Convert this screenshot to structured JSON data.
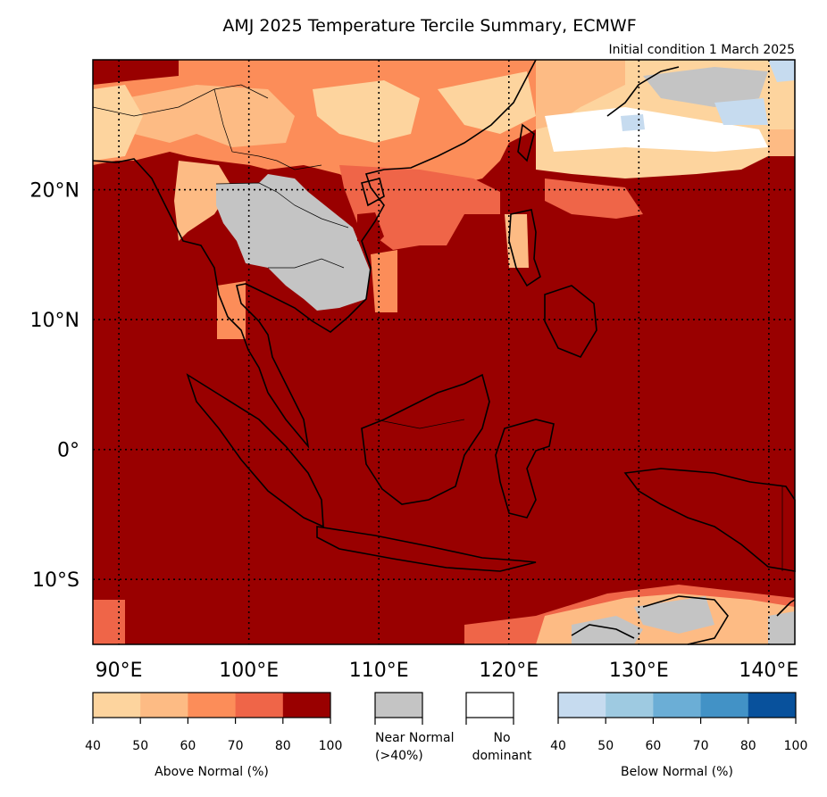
{
  "map": {
    "title": "AMJ 2025 Temperature Tercile Summary, ECMWF",
    "subtitle": "Initial condition 1 March 2025",
    "region": "Southeast Asia and Maritime Continent",
    "lat_range": [
      -15,
      30
    ],
    "lon_range": [
      88,
      142
    ],
    "lat_labels": [
      {
        "value": 20,
        "text": "20°N"
      },
      {
        "value": 10,
        "text": "10°N"
      },
      {
        "value": 0,
        "text": "0°"
      },
      {
        "value": -10,
        "text": "10°S"
      }
    ],
    "lon_labels": [
      {
        "value": 90,
        "text": "90°E"
      },
      {
        "value": 100,
        "text": "100°E"
      },
      {
        "value": 110,
        "text": "110°E"
      },
      {
        "value": 120,
        "text": "120°E"
      },
      {
        "value": 130,
        "text": "130°E"
      },
      {
        "value": 140,
        "text": "140°E"
      }
    ],
    "background_color": "#990000",
    "categories": {
      "above": {
        "min_percent": 80,
        "color": "#990000",
        "description": "predominant across most of the domain including the Maritime Continent and seas"
      },
      "near_normal": {
        "color": "#c4c4c4",
        "regions": [
          "Thailand",
          "Laos",
          "Cambodia",
          "Timor / northern Australia coast"
        ]
      },
      "below": {
        "percent_range": [
          40,
          50
        ],
        "color": "#c6dbef",
        "regions": [
          "southern Japan"
        ]
      }
    }
  },
  "legend": {
    "above": {
      "label": "Above Normal (%)",
      "ticks": [
        "40",
        "50",
        "60",
        "70",
        "80",
        "100"
      ],
      "colors": [
        "#fdd49e",
        "#fdbb84",
        "#fc8d59",
        "#ef6548",
        "#990000"
      ]
    },
    "near_normal": {
      "line1": "Near Normal",
      "line2": "(>40%)",
      "color": "#c4c4c4"
    },
    "no_dominant": {
      "line1": "No",
      "line2": "dominant",
      "color": "#ffffff"
    },
    "below": {
      "label": "Below Normal (%)",
      "ticks": [
        "40",
        "50",
        "60",
        "70",
        "80",
        "100"
      ],
      "colors": [
        "#c6dbef",
        "#9ecae1",
        "#6baed6",
        "#4292c6",
        "#08519c"
      ]
    }
  }
}
